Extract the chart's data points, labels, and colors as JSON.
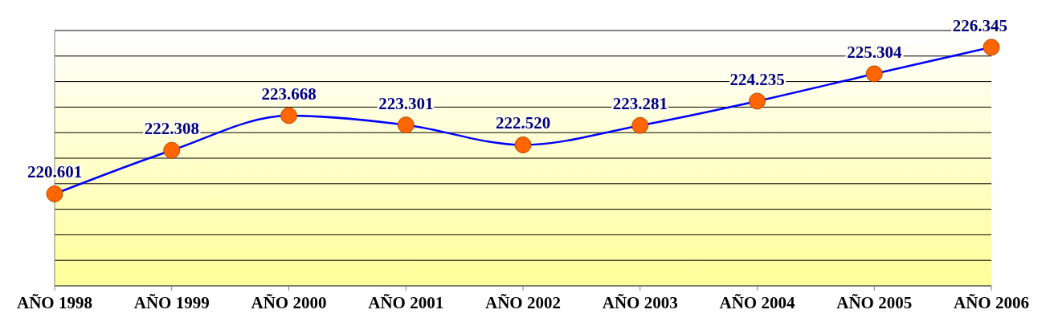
{
  "chart_data": {
    "type": "line",
    "categories": [
      "AÑO 1998",
      "AÑO 1999",
      "AÑO 2000",
      "AÑO 2001",
      "AÑO 2002",
      "AÑO 2003",
      "AÑO 2004",
      "AÑO 2005",
      "AÑO 2006"
    ],
    "series": [
      {
        "color": "#0000ff",
        "values": [
          220601,
          222308,
          223668,
          223301,
          222520,
          223281,
          224235,
          225304,
          226345
        ],
        "value_labels": [
          "220.601",
          "222.308",
          "223.668",
          "223.301",
          "222.520",
          "223.281",
          "224.235",
          "225.304",
          "226.345"
        ]
      }
    ],
    "ylim": [
      217000,
      227000
    ],
    "yticks": [
      {
        "value": 217000,
        "label": null
      },
      {
        "value": 218000,
        "label": null
      },
      {
        "value": 219000,
        "label": null
      },
      {
        "value": 220000,
        "label": null
      },
      {
        "value": 221000,
        "label": null
      },
      {
        "value": 222000,
        "label": null
      },
      {
        "value": 223000,
        "label": null
      },
      {
        "value": 224000,
        "label": null
      },
      {
        "value": 225000,
        "label": null
      },
      {
        "value": 226000,
        "label": null
      },
      {
        "value": 227000,
        "label": null
      }
    ],
    "tick_labels": "x",
    "grid": "y",
    "marker": "circle",
    "line_style": "solid"
  }
}
